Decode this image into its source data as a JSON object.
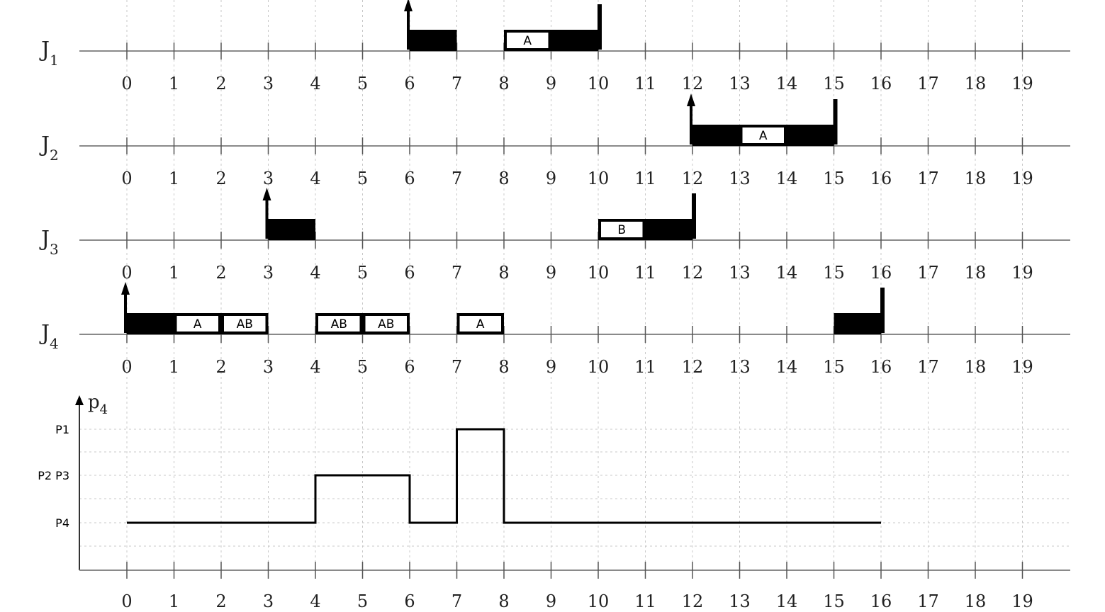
{
  "timeline": {
    "ticks": [
      "0",
      "1",
      "2",
      "3",
      "4",
      "5",
      "6",
      "7",
      "8",
      "9",
      "10",
      "11",
      "12",
      "13",
      "14",
      "15",
      "16",
      "17",
      "18",
      "19"
    ]
  },
  "jobs": [
    {
      "name": "J",
      "sub": "1",
      "release": 6,
      "deadline": 10,
      "segments": [
        {
          "start": 6,
          "end": 7,
          "fill": "black",
          "label": ""
        },
        {
          "start": 8,
          "end": 9,
          "fill": "white",
          "label": "A"
        },
        {
          "start": 9,
          "end": 10,
          "fill": "black",
          "label": ""
        }
      ]
    },
    {
      "name": "J",
      "sub": "2",
      "release": 12,
      "deadline": 15,
      "segments": [
        {
          "start": 12,
          "end": 13,
          "fill": "black",
          "label": ""
        },
        {
          "start": 13,
          "end": 14,
          "fill": "white",
          "label": "A"
        },
        {
          "start": 14,
          "end": 15,
          "fill": "black",
          "label": ""
        }
      ]
    },
    {
      "name": "J",
      "sub": "3",
      "release": 3,
      "deadline": 12,
      "segments": [
        {
          "start": 3,
          "end": 4,
          "fill": "black",
          "label": ""
        },
        {
          "start": 10,
          "end": 11,
          "fill": "white",
          "label": "B"
        },
        {
          "start": 11,
          "end": 12,
          "fill": "black",
          "label": ""
        }
      ]
    },
    {
      "name": "J",
      "sub": "4",
      "release": 0,
      "deadline": 16,
      "segments": [
        {
          "start": 0,
          "end": 1,
          "fill": "black",
          "label": ""
        },
        {
          "start": 1,
          "end": 2,
          "fill": "white",
          "label": "A"
        },
        {
          "start": 2,
          "end": 3,
          "fill": "white",
          "label": "AB"
        },
        {
          "start": 4,
          "end": 5,
          "fill": "white",
          "label": "AB"
        },
        {
          "start": 5,
          "end": 6,
          "fill": "white",
          "label": "AB"
        },
        {
          "start": 7,
          "end": 8,
          "fill": "white",
          "label": "A"
        },
        {
          "start": 15,
          "end": 16,
          "fill": "black",
          "label": ""
        }
      ]
    }
  ],
  "processor_plot": {
    "axis_label": "p",
    "axis_sub": "4",
    "levels": [
      "P1",
      "P2 P3",
      "P4"
    ],
    "steps": [
      {
        "t": 0,
        "level": "P4"
      },
      {
        "t": 4,
        "level": "P2 P3"
      },
      {
        "t": 6,
        "level": "P4"
      },
      {
        "t": 7,
        "level": "P1"
      },
      {
        "t": 8,
        "level": "P4"
      },
      {
        "t": 16,
        "level": "P4"
      }
    ]
  },
  "colors": {
    "bar": "#000000",
    "grid": "#c8c8c8",
    "axis": "#8a8a8a"
  }
}
